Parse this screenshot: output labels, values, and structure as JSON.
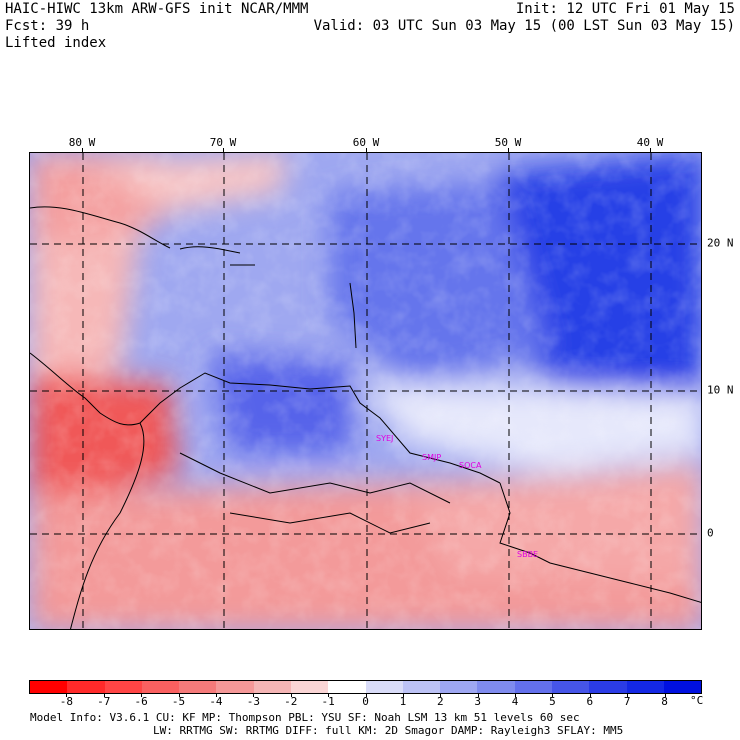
{
  "header": {
    "left_line1": "HAIC-HIWC 13km ARW-GFS init   NCAR/MMM",
    "left_line2": "Fcst:   39 h",
    "left_line3": "Lifted index",
    "right_line1": "Init: 12 UTC Fri 01 May 15",
    "right_line2": "Valid: 03 UTC Sun 03 May 15 (00 LST Sun 03 May 15)"
  },
  "map": {
    "lon_labels": [
      "80 W",
      "70 W",
      "60 W",
      "50 W",
      "40 W"
    ],
    "lat_labels": [
      "20 N",
      "10 N",
      "0"
    ],
    "stations": [
      "SYEJ",
      "SMJP",
      "SOCA",
      "SBBE"
    ],
    "colors": {
      "high": "#0020e0",
      "low": "#ff2020",
      "zero": "#ffffff"
    }
  },
  "colorbar": {
    "labels": [
      "-8",
      "-7",
      "-6",
      "-5",
      "-4",
      "-3",
      "-2",
      "-1",
      "0",
      "1",
      "2",
      "3",
      "4",
      "5",
      "6",
      "7",
      "8"
    ],
    "unit": "°C",
    "colors": [
      "#ff0000",
      "#ff2a2a",
      "#ff4545",
      "#fa6060",
      "#f57a7a",
      "#f59898",
      "#f5b5b5",
      "#fad5d5",
      "#ffffff",
      "#d9dcf8",
      "#bcc2f5",
      "#9ea7f2",
      "#7f8bee",
      "#6370ec",
      "#4655e8",
      "#2b3ce6",
      "#1428e4",
      "#0010e0"
    ]
  },
  "footer": {
    "line1": "Model Info: V3.6.1    CU: KF     MP: Thompson    PBL: YSU      SF: Noah LSM     13 km   51 levels   60 sec",
    "line2": "LW: RRTMG    SW: RRTMG   DIFF: full   KM: 2D Smagor DAMP: Rayleigh3  SFLAY: MM5"
  }
}
